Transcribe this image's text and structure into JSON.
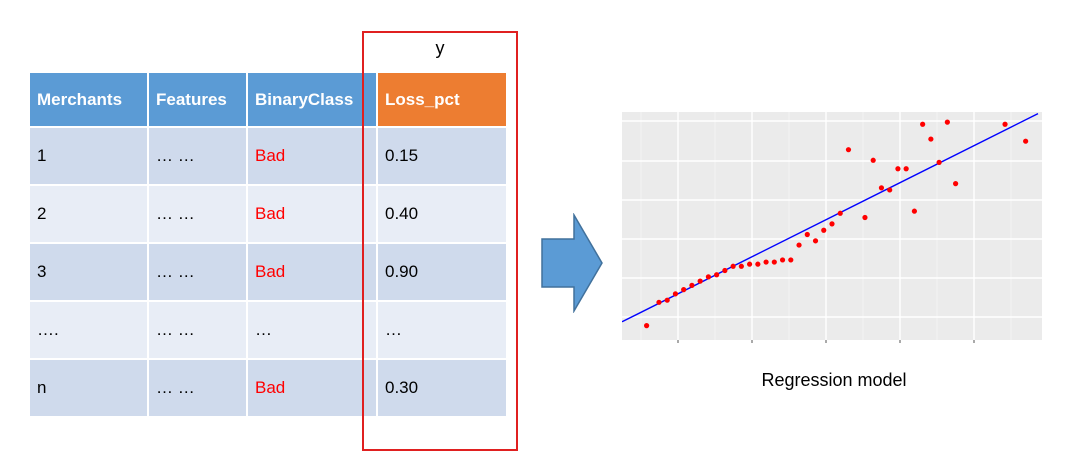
{
  "y_label": "y",
  "table": {
    "headers": [
      "Merchants",
      "Features",
      "BinaryClass",
      "Loss_pct"
    ],
    "rows": [
      [
        "1",
        "… …",
        "Bad",
        "0.15"
      ],
      [
        "2",
        "… …",
        "Bad",
        "0.40"
      ],
      [
        "3",
        "… …",
        "Bad",
        "0.90"
      ],
      [
        "….",
        "… …",
        "…",
        "…"
      ],
      [
        "n",
        "… …",
        "Bad",
        "0.30"
      ]
    ]
  },
  "caption": "Regression model",
  "colors": {
    "header": "#5b9bd5",
    "y_header": "#ed7d31",
    "row_odd": "#cfdaec",
    "row_even": "#e8edf6",
    "highlight_box": "#e02020",
    "arrow": "#5b9bd5",
    "plot_bg": "#ebebeb",
    "points": "#ff0000",
    "fit_line": "#0000ff"
  },
  "chart_data": {
    "type": "scatter",
    "title": "",
    "xlabel": "",
    "ylabel": "",
    "grid": true,
    "xlim": [
      0,
      100
    ],
    "ylim": [
      0,
      100
    ],
    "points": [
      [
        5,
        3
      ],
      [
        8,
        14
      ],
      [
        10,
        15
      ],
      [
        12,
        18
      ],
      [
        14,
        20
      ],
      [
        16,
        22
      ],
      [
        18,
        24
      ],
      [
        20,
        26
      ],
      [
        22,
        27
      ],
      [
        24,
        29
      ],
      [
        26,
        31
      ],
      [
        28,
        31
      ],
      [
        30,
        32
      ],
      [
        32,
        32
      ],
      [
        34,
        33
      ],
      [
        36,
        33
      ],
      [
        38,
        34
      ],
      [
        40,
        34
      ],
      [
        42,
        41
      ],
      [
        44,
        46
      ],
      [
        46,
        43
      ],
      [
        48,
        48
      ],
      [
        50,
        51
      ],
      [
        52,
        56
      ],
      [
        54,
        86
      ],
      [
        58,
        54
      ],
      [
        60,
        81
      ],
      [
        62,
        68
      ],
      [
        64,
        67
      ],
      [
        66,
        77
      ],
      [
        68,
        77
      ],
      [
        70,
        57
      ],
      [
        72,
        98
      ],
      [
        74,
        91
      ],
      [
        76,
        80
      ],
      [
        78,
        99
      ],
      [
        80,
        70
      ],
      [
        92,
        98
      ],
      [
        97,
        90
      ]
    ],
    "fit_line": [
      [
        0,
        5
      ],
      [
        100,
        103
      ]
    ]
  }
}
